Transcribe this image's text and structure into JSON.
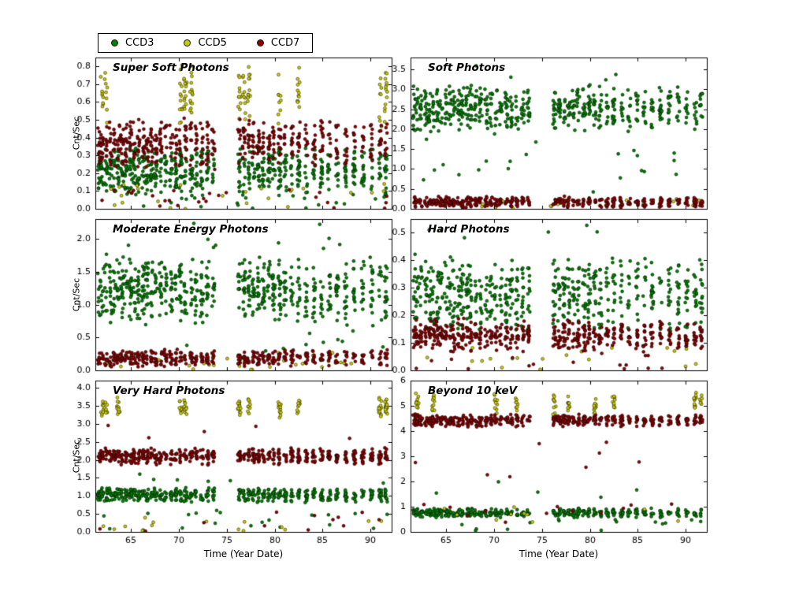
{
  "figure": {
    "background": "#ffffff",
    "xlabel": "Time (Year Date)",
    "ylabel": "Cnt/Sec",
    "legend": {
      "items": [
        {
          "label": "CCD3",
          "color": "#008000"
        },
        {
          "label": "CCD5",
          "color": "#c8c800"
        },
        {
          "label": "CCD7",
          "color": "#8b0000"
        }
      ]
    },
    "xlim": [
      61.3,
      92.2
    ],
    "xticks": [
      65,
      70,
      75,
      80,
      85,
      90
    ],
    "xticklabels": [
      "65",
      "70",
      "75",
      "80",
      "85",
      "90"
    ],
    "epochs": [
      61.7,
      62.0,
      62.4,
      62.9,
      63.3,
      63.7,
      64.1,
      64.5,
      65.0,
      65.4,
      65.8,
      66.3,
      66.7,
      67.2,
      67.6,
      68.1,
      68.6,
      69.2,
      69.7,
      70.2,
      70.7,
      71.3,
      71.8,
      72.4,
      73.0,
      73.6,
      76.3,
      76.8,
      77.3,
      77.8,
      78.3,
      78.8,
      79.4,
      79.9,
      80.5,
      81.1,
      81.8,
      82.5,
      83.3,
      84.1,
      84.9,
      85.7,
      86.5,
      87.4,
      88.3,
      89.2,
      90.1,
      91.0,
      91.6
    ]
  },
  "chart_data": [
    {
      "type": "scatter",
      "title": "Super Soft Photons",
      "xlabel": "Time (Year Date)",
      "ylabel": "Cnt/Sec",
      "grid": false,
      "xlim": [
        61.3,
        92.2
      ],
      "ylim": [
        0,
        0.85
      ],
      "yticks": [
        0.0,
        0.1,
        0.2,
        0.3,
        0.4,
        0.5,
        0.6,
        0.7,
        0.8
      ],
      "yticklabels": [
        "0.0",
        "0.1",
        "0.2",
        "0.3",
        "0.4",
        "0.5",
        "0.6",
        "0.7",
        "0.8"
      ],
      "series": [
        {
          "name": "CCD3",
          "color": "#008000",
          "clusters": {
            "epochs": "all",
            "per_epoch": 12,
            "y": [
              0.07,
              0.36
            ]
          },
          "outliers": [
            {
              "count": 20,
              "y": [
                0.0,
                0.08
              ]
            }
          ]
        },
        {
          "name": "CCD5",
          "color": "#c8c800",
          "clusters": {
            "epochs": [
              1,
              2,
              19,
              20,
              21,
              26,
              27,
              28,
              34,
              37,
              47,
              48
            ],
            "per_epoch": 12,
            "y": [
              0.45,
              0.82
            ]
          },
          "outliers": [
            {
              "count": 25,
              "y": [
                0.0,
                0.14
              ]
            }
          ]
        },
        {
          "name": "CCD7",
          "color": "#8b0000",
          "clusters": {
            "epochs": "all",
            "per_epoch": 10,
            "y": [
              0.22,
              0.52
            ]
          },
          "outliers": [
            {
              "count": 25,
              "y": [
                0.0,
                0.12
              ]
            }
          ]
        }
      ]
    },
    {
      "type": "scatter",
      "title": "Soft Photons",
      "xlabel": "Time (Year Date)",
      "ylabel": "",
      "grid": false,
      "xlim": [
        61.3,
        92.2
      ],
      "ylim": [
        0,
        3.8
      ],
      "yticks": [
        0.0,
        0.5,
        1.0,
        1.5,
        2.0,
        2.5,
        3.0,
        3.5
      ],
      "yticklabels": [
        "0.0",
        "0.5",
        "1.0",
        "1.5",
        "2.0",
        "2.5",
        "3.0",
        "3.5"
      ],
      "series": [
        {
          "name": "CCD3",
          "color": "#008000",
          "clusters": {
            "epochs": "all",
            "per_epoch": 12,
            "y": [
              1.9,
              3.15
            ]
          },
          "outliers": [
            {
              "count": 22,
              "y": [
                0.3,
                1.9
              ]
            },
            {
              "count": 4,
              "y": [
                3.2,
                3.7
              ]
            }
          ]
        },
        {
          "name": "CCD5",
          "color": "#c8c800",
          "outliers": [
            {
              "count": 35,
              "y": [
                0.0,
                0.25
              ]
            }
          ]
        },
        {
          "name": "CCD7",
          "color": "#8b0000",
          "clusters": {
            "epochs": "all",
            "per_epoch": 8,
            "y": [
              0.02,
              0.32
            ]
          }
        }
      ]
    },
    {
      "type": "scatter",
      "title": "Moderate Energy Photons",
      "xlabel": "Time (Year Date)",
      "ylabel": "Cnt/Sec",
      "grid": false,
      "xlim": [
        61.3,
        92.2
      ],
      "ylim": [
        0,
        2.3
      ],
      "yticks": [
        0.0,
        0.5,
        1.0,
        1.5,
        2.0
      ],
      "yticklabels": [
        "0.0",
        "0.5",
        "1.0",
        "1.5",
        "2.0"
      ],
      "series": [
        {
          "name": "CCD3",
          "color": "#008000",
          "clusters": {
            "epochs": "all",
            "per_epoch": 13,
            "y": [
              0.65,
              1.8
            ]
          },
          "outliers": [
            {
              "count": 10,
              "y": [
                1.85,
                2.25
              ]
            },
            {
              "count": 10,
              "y": [
                0.25,
                0.6
              ]
            }
          ]
        },
        {
          "name": "CCD5",
          "color": "#c8c800",
          "outliers": [
            {
              "count": 30,
              "y": [
                0.0,
                0.28
              ]
            }
          ]
        },
        {
          "name": "CCD7",
          "color": "#8b0000",
          "clusters": {
            "epochs": "all",
            "per_epoch": 8,
            "y": [
              0.04,
              0.33
            ]
          }
        }
      ]
    },
    {
      "type": "scatter",
      "title": "Hard Photons",
      "xlabel": "Time (Year Date)",
      "ylabel": "",
      "grid": false,
      "xlim": [
        61.3,
        92.2
      ],
      "ylim": [
        0,
        0.55
      ],
      "yticks": [
        0.0,
        0.1,
        0.2,
        0.3,
        0.4,
        0.5
      ],
      "yticklabels": [
        "0.0",
        "0.1",
        "0.2",
        "0.3",
        "0.4",
        "0.5"
      ],
      "series": [
        {
          "name": "CCD3",
          "color": "#008000",
          "clusters": {
            "epochs": "all",
            "per_epoch": 12,
            "y": [
              0.12,
              0.43
            ]
          },
          "outliers": [
            {
              "count": 6,
              "y": [
                0.44,
                0.53
              ]
            }
          ]
        },
        {
          "name": "CCD5",
          "color": "#c8c800",
          "outliers": [
            {
              "count": 20,
              "y": [
                0.0,
                0.09
              ]
            }
          ]
        },
        {
          "name": "CCD7",
          "color": "#8b0000",
          "clusters": {
            "epochs": "all",
            "per_epoch": 10,
            "y": [
              0.06,
              0.19
            ]
          },
          "outliers": [
            {
              "count": 15,
              "y": [
                0.0,
                0.06
              ]
            }
          ]
        }
      ]
    },
    {
      "type": "scatter",
      "title": "Very Hard Photons",
      "xlabel": "Time (Year Date)",
      "ylabel": "Cnt/Sec",
      "grid": false,
      "xlim": [
        61.3,
        92.2
      ],
      "ylim": [
        0,
        4.2
      ],
      "yticks": [
        0.0,
        0.5,
        1.0,
        1.5,
        2.0,
        2.5,
        3.0,
        3.5,
        4.0
      ],
      "yticklabels": [
        "0.0",
        "0.5",
        "1.0",
        "1.5",
        "2.0",
        "2.5",
        "3.0",
        "3.5",
        "4.0"
      ],
      "series": [
        {
          "name": "CCD3",
          "color": "#008000",
          "clusters": {
            "epochs": "all",
            "per_epoch": 10,
            "y": [
              0.8,
              1.25
            ]
          },
          "outliers": [
            {
              "count": 20,
              "y": [
                0.0,
                0.7
              ]
            },
            {
              "count": 6,
              "y": [
                1.3,
                1.8
              ]
            }
          ]
        },
        {
          "name": "CCD5",
          "color": "#c8c800",
          "clusters": {
            "epochs": [
              1,
              2,
              5,
              19,
              20,
              26,
              28,
              34,
              37,
              47,
              48
            ],
            "per_epoch": 11,
            "y": [
              3.15,
              3.8
            ]
          },
          "outliers": [
            {
              "count": 15,
              "y": [
                0.0,
                0.4
              ]
            }
          ]
        },
        {
          "name": "CCD7",
          "color": "#8b0000",
          "clusters": {
            "epochs": "all",
            "per_epoch": 10,
            "y": [
              1.85,
              2.35
            ]
          },
          "outliers": [
            {
              "count": 12,
              "y": [
                0.0,
                0.6
              ]
            },
            {
              "count": 5,
              "y": [
                2.5,
                3.0
              ]
            }
          ]
        }
      ]
    },
    {
      "type": "scatter",
      "title": "Beyond 10 keV",
      "xlabel": "Time (Year Date)",
      "ylabel": "",
      "grid": false,
      "xlim": [
        61.3,
        92.2
      ],
      "ylim": [
        0,
        6
      ],
      "yticks": [
        0,
        1,
        2,
        3,
        4,
        5,
        6
      ],
      "yticklabels": [
        "0",
        "1",
        "2",
        "3",
        "4",
        "5",
        "6"
      ],
      "series": [
        {
          "name": "CCD3",
          "color": "#008000",
          "clusters": {
            "epochs": "all",
            "per_epoch": 8,
            "y": [
              0.55,
              0.95
            ]
          },
          "outliers": [
            {
              "count": 15,
              "y": [
                0.0,
                0.5
              ]
            },
            {
              "count": 5,
              "y": [
                1.0,
                2.0
              ]
            }
          ]
        },
        {
          "name": "CCD5",
          "color": "#c8c800",
          "clusters": {
            "epochs": [
              1,
              5,
              19,
              23,
              26,
              29,
              34,
              37,
              47,
              48
            ],
            "per_epoch": 9,
            "y": [
              4.6,
              5.6
            ]
          },
          "outliers": [
            {
              "count": 10,
              "y": [
                0.2,
                1.2
              ]
            }
          ]
        },
        {
          "name": "CCD7",
          "color": "#8b0000",
          "clusters": {
            "epochs": "all",
            "per_epoch": 10,
            "y": [
              4.15,
              4.7
            ]
          },
          "outliers": [
            {
              "count": 12,
              "y": [
                0.3,
                1.2
              ]
            },
            {
              "count": 8,
              "y": [
                2.0,
                3.6
              ]
            }
          ]
        }
      ]
    }
  ]
}
